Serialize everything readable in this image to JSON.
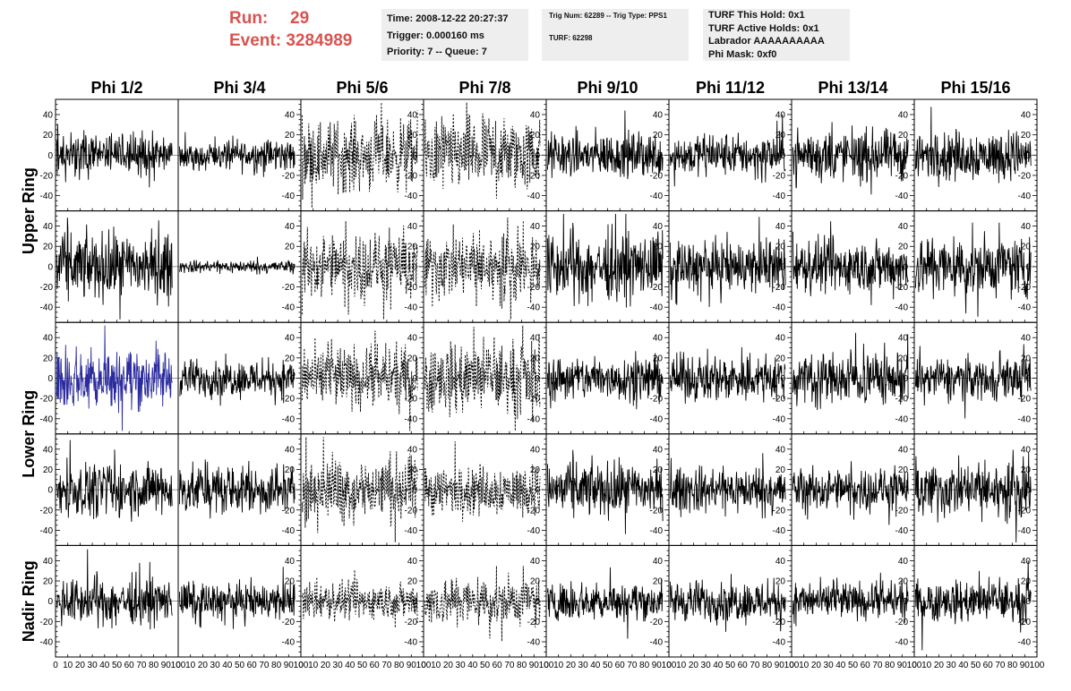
{
  "header": {
    "run_label": "Run:",
    "run_value": "29",
    "event_label": "Event:",
    "event_value": "3284989",
    "time_line": "Time: 2008-12-22 20:27:37",
    "trigger_line": "Trigger: 0.000160 ms",
    "priority_line": "Priority: 7 -- Queue: 7",
    "trig_line": "Trig Num: 62289 -- Trig Type: PPS1",
    "turf_line": "TURF: 62298",
    "turf_hold_line": "TURF This Hold: 0x1",
    "turf_active_line": "TURF Active Holds: 0x1",
    "labrador_line": "Labrador AAAAAAAAAA",
    "phimask_line": "Phi Mask: 0xf0"
  },
  "chart_data": {
    "type": "line",
    "columns": [
      "Phi 1/2",
      "Phi 3/4",
      "Phi 5/6",
      "Phi 7/8",
      "Phi 9/10",
      "Phi 11/12",
      "Phi 13/14",
      "Phi 15/16"
    ],
    "rows": [
      "Upper Ring",
      "Lower Ring",
      "Nadir Ring"
    ],
    "xlim": [
      0,
      100
    ],
    "ylim": [
      -55,
      55
    ],
    "x_ticks": [
      0,
      10,
      20,
      30,
      40,
      50,
      60,
      70,
      80,
      90,
      100
    ],
    "y_ticks": [
      -40,
      -20,
      0,
      20,
      40
    ],
    "x_tick_labels": [
      "0",
      "10",
      "20",
      "30",
      "40",
      "50",
      "60",
      "70",
      "80",
      "90",
      "100"
    ],
    "y_tick_labels": [
      "-40",
      "-20",
      "0",
      "20",
      "40"
    ],
    "panel_rows": [
      {
        "label": "Upper Ring",
        "amplitudes": [
          10,
          8,
          17,
          18,
          11,
          10,
          12,
          12
        ],
        "styles": [
          "solid",
          "solid",
          "dashed",
          "dashed",
          "solid",
          "solid",
          "solid",
          "solid"
        ]
      },
      {
        "label": "",
        "amplitudes": [
          16,
          3,
          16,
          16,
          16,
          13,
          13,
          15
        ],
        "styles": [
          "solid",
          "solid",
          "dashed",
          "dashed",
          "solid",
          "solid",
          "solid",
          "solid"
        ]
      },
      {
        "label": "Lower Ring",
        "amplitudes": [
          15,
          9,
          15,
          17,
          11,
          11,
          13,
          10
        ],
        "styles": [
          "solid",
          "solid",
          "dashed",
          "dashed",
          "solid",
          "solid",
          "solid",
          "solid"
        ]
      },
      {
        "label": "",
        "amplitudes": [
          13,
          12,
          16,
          12,
          13,
          11,
          10,
          13
        ],
        "styles": [
          "solid",
          "solid",
          "dashed",
          "dashed",
          "solid",
          "solid",
          "solid",
          "solid"
        ]
      },
      {
        "label": "Nadir Ring",
        "amplitudes": [
          11,
          9,
          9,
          12,
          9,
          10,
          9,
          10
        ],
        "styles": [
          "solid",
          "solid",
          "dashed",
          "dashed",
          "solid",
          "solid",
          "solid",
          "solid"
        ]
      }
    ],
    "highlight": {
      "row": 2,
      "col": 0,
      "color": "#2b2b9e"
    },
    "trace_color": "#000000",
    "samples_per_trace": 260,
    "grid": false
  }
}
